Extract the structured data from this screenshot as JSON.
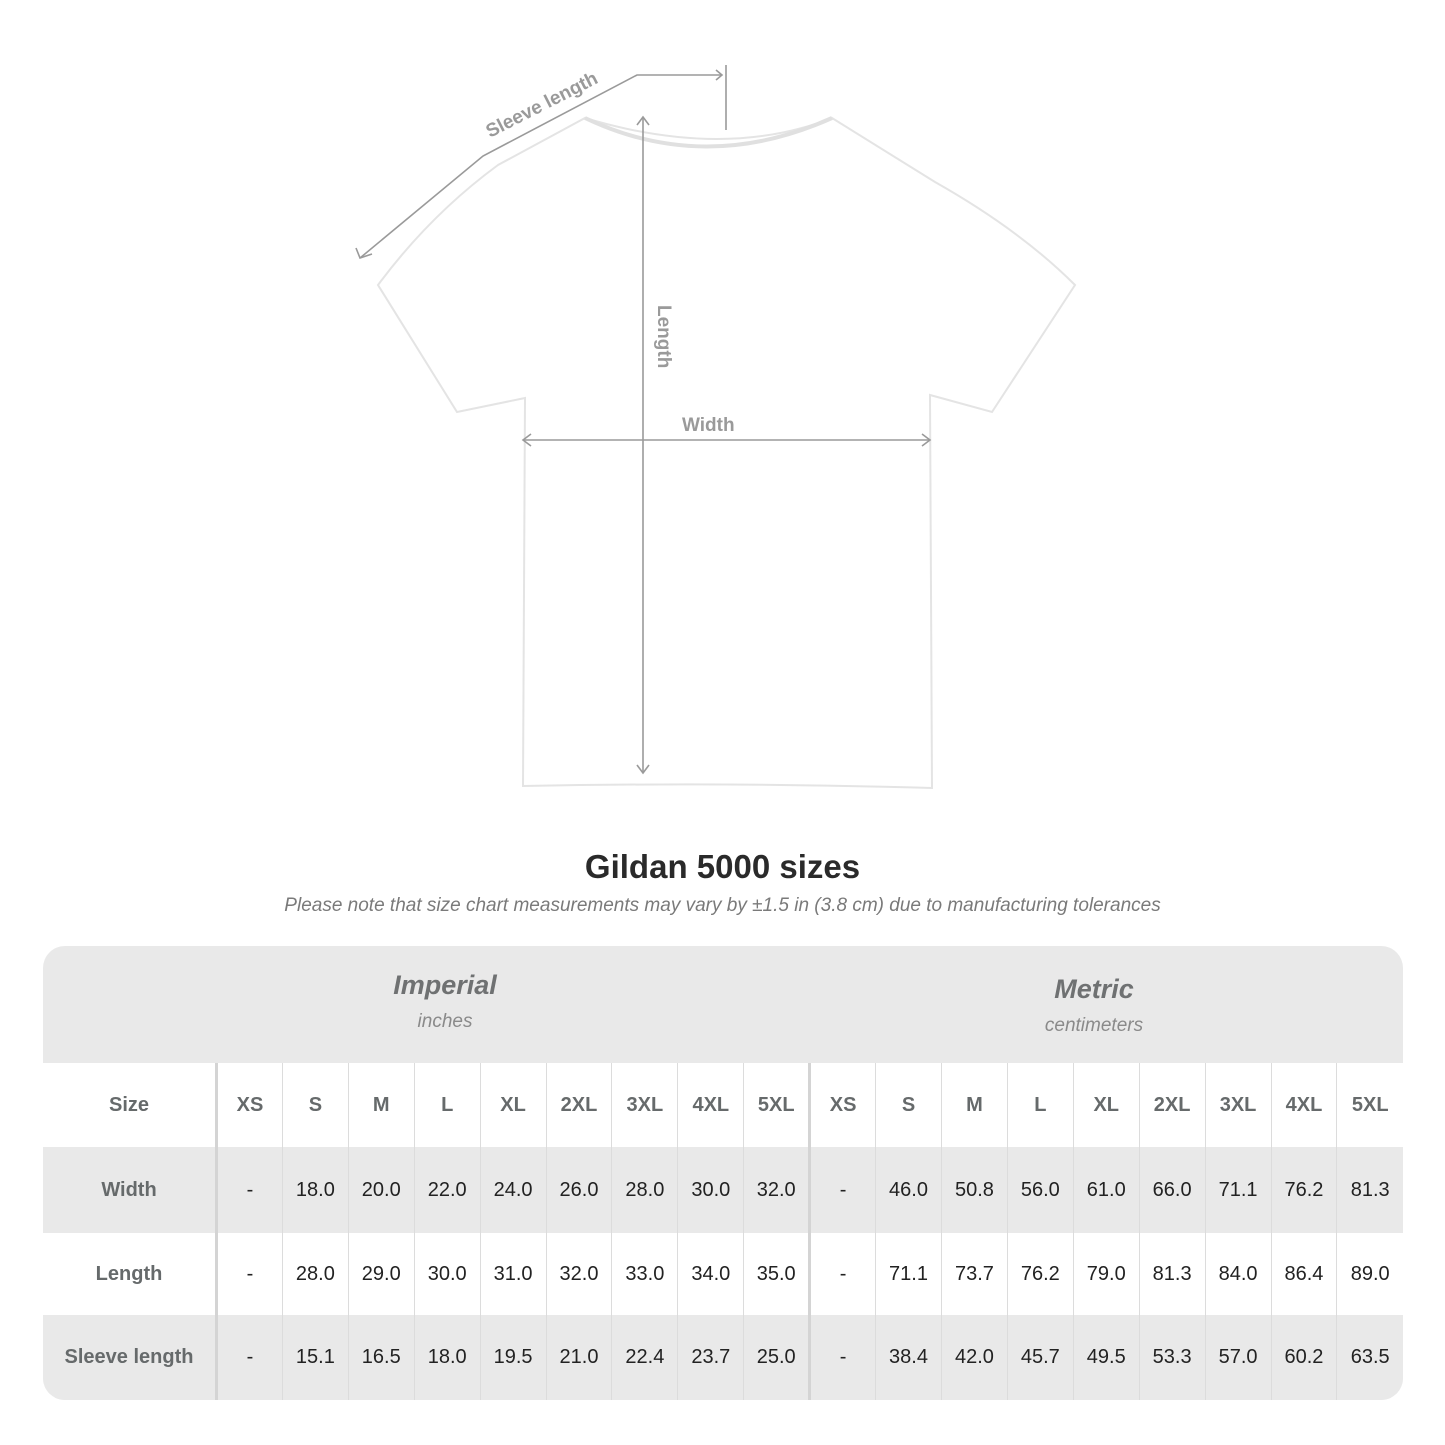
{
  "diagram": {
    "labels": {
      "sleeve": "Sleeve length",
      "length": "Length",
      "width": "Width"
    },
    "colors": {
      "measure_line": "#9a9a9a",
      "shirt_fill": "#ffffff",
      "shirt_shade": "#e4e4e4"
    }
  },
  "title": "Gildan 5000 sizes",
  "note": "Please note that size chart measurements may vary by ±1.5 in (3.8 cm) due to manufacturing tolerances",
  "units": {
    "imperial": {
      "label": "Imperial",
      "sub": "inches"
    },
    "metric": {
      "label": "Metric",
      "sub": "centimeters"
    }
  },
  "table": {
    "size_label": "Size",
    "sizes": [
      "XS",
      "S",
      "M",
      "L",
      "XL",
      "2XL",
      "3XL",
      "4XL",
      "5XL"
    ],
    "rows": [
      {
        "label": "Width",
        "imperial": [
          "-",
          "18.0",
          "20.0",
          "22.0",
          "24.0",
          "26.0",
          "28.0",
          "30.0",
          "32.0"
        ],
        "metric": [
          "-",
          "46.0",
          "50.8",
          "56.0",
          "61.0",
          "66.0",
          "71.1",
          "76.2",
          "81.3"
        ]
      },
      {
        "label": "Length",
        "imperial": [
          "-",
          "28.0",
          "29.0",
          "30.0",
          "31.0",
          "32.0",
          "33.0",
          "34.0",
          "35.0"
        ],
        "metric": [
          "-",
          "71.1",
          "73.7",
          "76.2",
          "79.0",
          "81.3",
          "84.0",
          "86.4",
          "89.0"
        ]
      },
      {
        "label": "Sleeve length",
        "imperial": [
          "-",
          "15.1",
          "16.5",
          "18.0",
          "19.5",
          "21.0",
          "22.4",
          "23.7",
          "25.0"
        ],
        "metric": [
          "-",
          "38.4",
          "42.0",
          "45.7",
          "49.5",
          "53.3",
          "57.0",
          "60.2",
          "63.5"
        ]
      }
    ]
  }
}
